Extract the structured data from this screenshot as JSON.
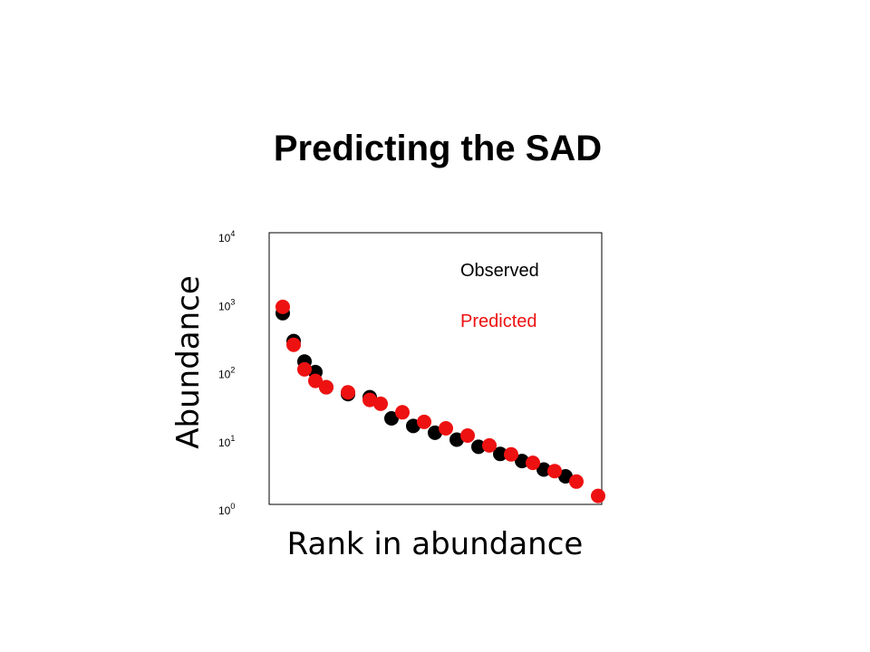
{
  "chart_data": {
    "type": "scatter",
    "title": "Predicting the SAD",
    "xlabel": "Rank in abundance",
    "ylabel": "Abundance",
    "y_scale": "log",
    "ylim": [
      1,
      10000
    ],
    "y_ticks": [
      {
        "base": "10",
        "exp": "0",
        "value": 1
      },
      {
        "base": "10",
        "exp": "1",
        "value": 10
      },
      {
        "base": "10",
        "exp": "2",
        "value": 100
      },
      {
        "base": "10",
        "exp": "3",
        "value": 1000
      },
      {
        "base": "10",
        "exp": "4",
        "value": 10000
      }
    ],
    "xlim": [
      0,
      18
    ],
    "legend": {
      "placement": "top-right",
      "entries": [
        "Observed",
        "Predicted"
      ]
    },
    "series": [
      {
        "name": "Observed",
        "color": "#000000",
        "x": [
          1,
          1.5,
          2,
          2.5,
          3,
          4,
          5,
          6,
          7,
          8,
          9,
          10,
          11,
          12,
          13,
          14
        ],
        "y": [
          770,
          300,
          150,
          105,
          63,
          50,
          45,
          22,
          17,
          13.5,
          10.7,
          8.4,
          6.6,
          5.2,
          3.9,
          3.1
        ]
      },
      {
        "name": "Predicted",
        "color": "#ee1111",
        "x": [
          1,
          1.5,
          2,
          2.5,
          3,
          4,
          5,
          5.5,
          6.5,
          7.5,
          8.5,
          9.5,
          10.5,
          11.5,
          12.5,
          13.5,
          14.5,
          15.5
        ],
        "y": [
          950,
          265,
          115,
          78,
          63,
          53,
          41,
          36,
          27,
          19.5,
          15.7,
          12.3,
          8.8,
          6.5,
          4.9,
          3.7,
          2.6,
          1.6
        ]
      }
    ]
  }
}
